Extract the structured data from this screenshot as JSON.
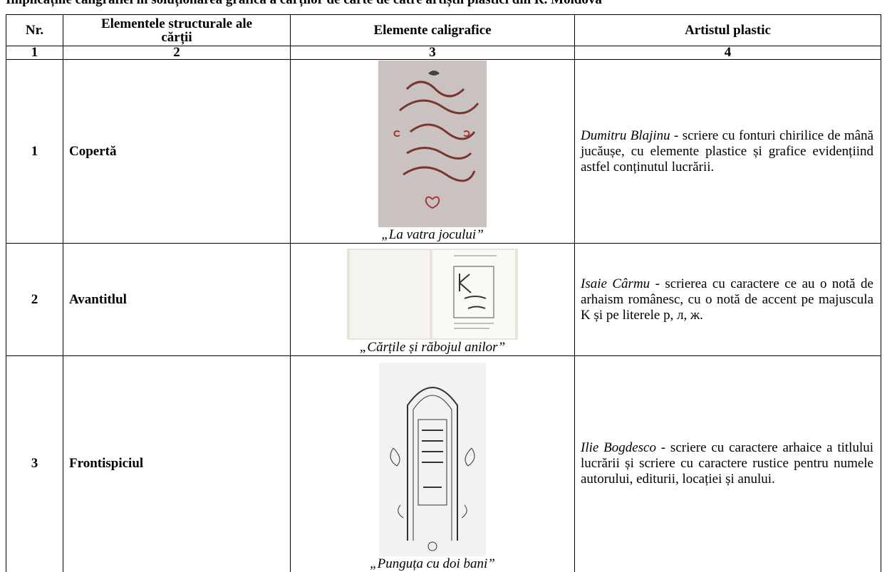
{
  "header": {
    "title": "Implicațiile caligrafiei în soluționarea grafică a cărților de carte de către artiștii plastici din R. Moldova"
  },
  "table": {
    "headers": [
      "Nr.",
      "Elementele structurale ale cărții",
      "Elemente caligrafice",
      "Artistul plastic"
    ],
    "numbers": [
      "1",
      "2",
      "3",
      "4"
    ],
    "rows": [
      {
        "nr": "1",
        "element": "Copertă",
        "caption": "„La vatra jocului”",
        "artist": "Dumitru Blajinu",
        "description": " - scriere cu fonturi chirilice de mână jucăușe, cu elemente plastice și grafice evidențiind astfel conținutul lucrării."
      },
      {
        "nr": "2",
        "element": "Avantitlul",
        "caption": "„Cărțile și răbojul anilor”",
        "artist": "Isaie Cârmu",
        "description": " - scrierea cu caractere ce au o notă de arhaism românesc, cu o notă de accent pe majuscula K și pe literele р, л, ж."
      },
      {
        "nr": "3",
        "element": "Frontispiciul",
        "caption": "„Punguța cu doi bani”",
        "artist": "Ilie Bogdesco",
        "description": " - scriere cu caractere arhaice a titlului lucrării și scriere cu caractere rustice pentru numele autorului, editurii, locației și anului."
      }
    ]
  }
}
